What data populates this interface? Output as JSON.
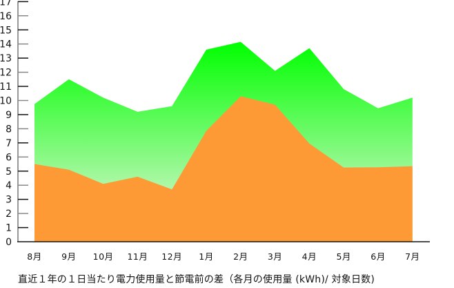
{
  "chart_data": {
    "type": "area",
    "title": "直近１年の１日当たり電力使用量と節電前の差（各月の使用量 (kWh)/ 対象日数)",
    "xlabel": "",
    "ylabel": "",
    "ylim": [
      0,
      17
    ],
    "yticks": [
      0,
      1,
      2,
      3,
      4,
      5,
      6,
      7,
      8,
      9,
      10,
      11,
      12,
      13,
      14,
      15,
      16,
      17
    ],
    "grid": false,
    "legend": null,
    "categories": [
      "8月",
      "9月",
      "10月",
      "11月",
      "12月",
      "1月",
      "2月",
      "3月",
      "4月",
      "5月",
      "6月",
      "7月"
    ],
    "series": [
      {
        "name": "節電前",
        "color_top": "#00ff00",
        "color_bottom": "#b4f7ae",
        "values": [
          9.75,
          11.5,
          10.2,
          9.2,
          9.6,
          13.6,
          14.15,
          12.1,
          13.7,
          10.8,
          9.45,
          10.2
        ]
      },
      {
        "name": "直近１年",
        "color": "#fd9a36",
        "values": [
          5.5,
          5.1,
          4.1,
          4.6,
          3.7,
          7.85,
          10.3,
          9.7,
          6.95,
          5.25,
          5.27,
          5.35
        ]
      }
    ]
  },
  "caption": "直近１年の１日当たり電力使用量と節電前の差（各月の使用量 (kWh)/ 対象日数)"
}
